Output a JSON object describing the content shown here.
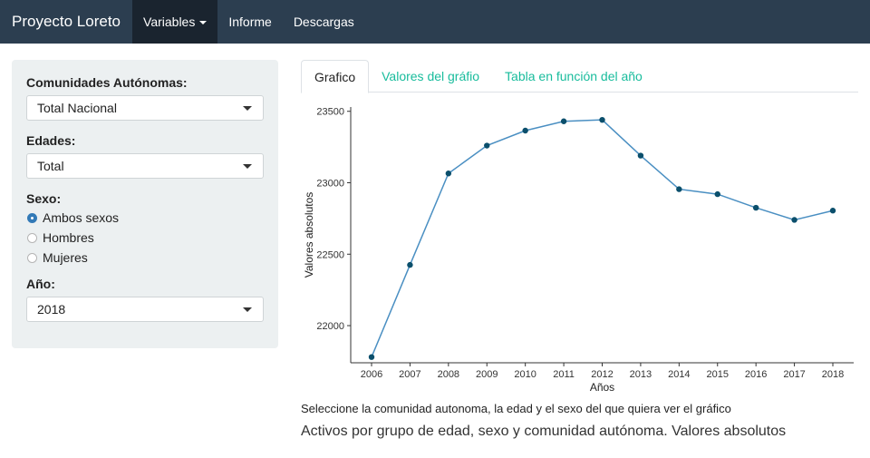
{
  "navbar": {
    "brand": "Proyecto Loreto",
    "items": [
      {
        "label": "Variables",
        "active": true,
        "dropdown": true
      },
      {
        "label": "Informe",
        "active": false
      },
      {
        "label": "Descargas",
        "active": false
      }
    ]
  },
  "sidebar": {
    "comunidades": {
      "label": "Comunidades Autónomas:",
      "value": "Total Nacional"
    },
    "edades": {
      "label": "Edades:",
      "value": "Total"
    },
    "sexo": {
      "label": "Sexo:",
      "options": [
        {
          "label": "Ambos sexos",
          "checked": true
        },
        {
          "label": "Hombres",
          "checked": false
        },
        {
          "label": "Mujeres",
          "checked": false
        }
      ]
    },
    "anio": {
      "label": "Año:",
      "value": "2018"
    }
  },
  "tabs": [
    {
      "label": "Grafico",
      "active": true
    },
    {
      "label": "Valores del gráfio",
      "active": false
    },
    {
      "label": "Tabla en función del año",
      "active": false
    }
  ],
  "chart_data": {
    "type": "line",
    "x": [
      2006,
      2007,
      2008,
      2009,
      2010,
      2011,
      2012,
      2013,
      2014,
      2015,
      2016,
      2017,
      2018
    ],
    "values": [
      21780,
      22425,
      23065,
      23260,
      23365,
      23430,
      23440,
      23190,
      22955,
      22920,
      22825,
      22740,
      22805
    ],
    "xlabel": "Años",
    "ylabel": "Valores absolutos",
    "yticks": [
      22000,
      22500,
      23000,
      23500
    ],
    "ylim": [
      21740,
      23530
    ],
    "line_color": "#4a8fc2",
    "point_color": "#0b4f6c"
  },
  "caption": "Seleccione la comunidad autonoma, la edad y el sexo del que quiera ver el gráfico",
  "subtitle": "Activos por grupo de edad, sexo y comunidad autónoma. Valores absolutos"
}
